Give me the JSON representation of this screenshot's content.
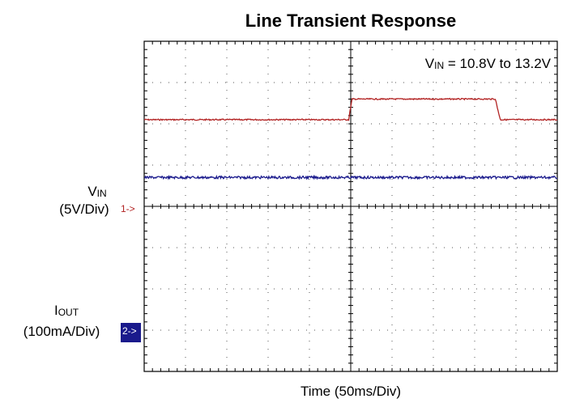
{
  "chart_data": {
    "type": "line",
    "title": "Line Transient Response",
    "annotation": {
      "main": "V",
      "sub": "IN",
      "rest": " = 10.8V to 13.2V"
    },
    "xlabel": "Time (50ms/Div)",
    "divisions": {
      "x": 10,
      "y": 8
    },
    "grid": true,
    "channels": [
      {
        "id": "1",
        "marker": "1->",
        "name_main": "V",
        "name_sub": "IN",
        "scale": "(5V/Div)",
        "color": "#b22222",
        "ground_div": 4.0,
        "levels_div": [
          2.1,
          2.6,
          2.1
        ],
        "steps_div": [
          4.95,
          8.5
        ],
        "noise_div": 0.015
      },
      {
        "id": "2",
        "marker": "2->",
        "name_main": "I",
        "name_sub": "OUT",
        "scale": "(100mA/Div)",
        "color": "#1a1a8c",
        "ground_div": 6.0,
        "levels_div": [
          2.7,
          2.7,
          2.7
        ],
        "steps_div": [
          4.95,
          8.5
        ],
        "noise_div": 0.03
      }
    ]
  }
}
